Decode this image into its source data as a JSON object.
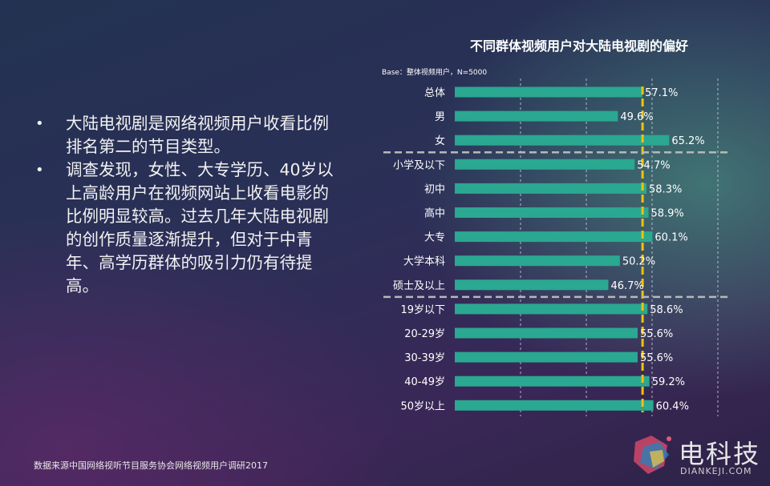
{
  "bullets": [
    "大陆电视剧是网络视频用户收看比例排名第二的节目类型。",
    "调查发现，女性、大专学历、40岁以上高龄用户在视频网站上收看电影的比例明显较高。过去几年大陆电视剧的创作质量逐渐提升，但对于中青年、高学历群体的吸引力仍有待提高。"
  ],
  "source": "数据来源中国网络视听节目服务协会网络视频用户调研2017",
  "logo": {
    "text": "电科技",
    "sub": "DIANKEJI.COM"
  },
  "chart_data": {
    "type": "bar",
    "orientation": "horizontal",
    "title": "不同群体视频用户对大陆电视剧的偏好",
    "base_note": "Base：整体视频用户，N=5000",
    "categories": [
      "总体",
      "男",
      "女",
      "小学及以下",
      "初中",
      "高中",
      "大专",
      "大学本科",
      "硕士及以上",
      "19岁以下",
      "20-29岁",
      "30-39岁",
      "40-49岁",
      "50岁以上"
    ],
    "values": [
      57.1,
      49.6,
      65.2,
      54.7,
      58.3,
      58.9,
      60.1,
      50.2,
      46.7,
      58.6,
      55.6,
      55.6,
      59.2,
      60.4
    ],
    "value_labels": [
      "57.1%",
      "49.6%",
      "65.2%",
      "54.7%",
      "58.3%",
      "58.9%",
      "60.1%",
      "50.2%",
      "46.7%",
      "58.6%",
      "55.6%",
      "55.6%",
      "59.2%",
      "60.4%"
    ],
    "reference_value": 57.1,
    "group_breaks_after": [
      2,
      8
    ],
    "xlim": [
      0,
      100
    ],
    "grid": true,
    "colors": {
      "bar": "#2aa891",
      "reference": "#f2c200",
      "grid": "#cfd6e0",
      "divider": "#b8b8b8"
    }
  }
}
